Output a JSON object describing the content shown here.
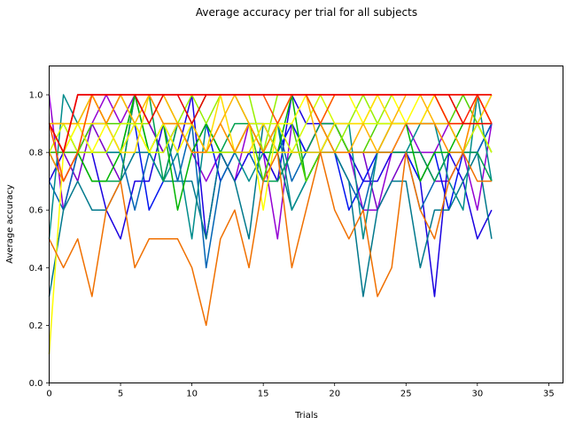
{
  "chart_data": {
    "type": "line",
    "title": "Average accuracy per trial for all subjects",
    "xlabel": "Trials",
    "ylabel": "Average accuracy",
    "xlim": [
      0,
      36
    ],
    "ylim": [
      0,
      1.1
    ],
    "xticks": [
      "0",
      "5",
      "10",
      "15",
      "20",
      "25",
      "30",
      "35"
    ],
    "yticks": [
      "0.0",
      "0.2",
      "0.4",
      "0.6",
      "0.8",
      "1.0"
    ],
    "xtick_values": [
      0,
      5,
      10,
      15,
      20,
      25,
      30,
      35
    ],
    "ytick_values": [
      0.0,
      0.2,
      0.4,
      0.6,
      0.8,
      1.0
    ],
    "grid": false,
    "legend": false,
    "series": [
      {
        "color": "#9400d3",
        "values": [
          1.0,
          0.6,
          0.8,
          0.9,
          1.0,
          0.9,
          1.0,
          0.9,
          0.8,
          0.9,
          0.8,
          0.7,
          0.8,
          0.7,
          0.9,
          0.8,
          0.5,
          0.9,
          0.8,
          0.9,
          0.8,
          0.8,
          0.6,
          0.6,
          0.8,
          0.9,
          0.8,
          0.8,
          0.9,
          0.8,
          0.6,
          0.9
        ]
      },
      {
        "color": "#7a00c8",
        "values": [
          0.8,
          0.8,
          0.7,
          0.9,
          0.8,
          0.7,
          1.0,
          0.9,
          0.8,
          0.9,
          0.8,
          0.8,
          0.8,
          0.8,
          0.8,
          0.8,
          0.7,
          0.8,
          0.8,
          0.9,
          0.9,
          0.8,
          0.8,
          0.6,
          0.7,
          0.8,
          0.8,
          0.7,
          0.7,
          0.8,
          0.9,
          1.0
        ]
      },
      {
        "color": "#1a00e0",
        "values": [
          0.7,
          0.8,
          0.8,
          0.8,
          0.6,
          0.5,
          0.7,
          0.7,
          0.9,
          0.8,
          1.0,
          0.5,
          0.8,
          0.7,
          0.8,
          0.8,
          0.7,
          1.0,
          0.9,
          0.9,
          0.9,
          0.8,
          0.7,
          0.7,
          0.8,
          0.8,
          0.7,
          0.3,
          0.8,
          0.7,
          0.5,
          0.6
        ]
      },
      {
        "color": "#0014f0",
        "values": [
          0.8,
          0.8,
          0.8,
          0.9,
          0.9,
          0.8,
          0.9,
          0.6,
          0.7,
          0.9,
          0.8,
          0.9,
          0.7,
          0.8,
          0.9,
          0.9,
          0.8,
          0.9,
          0.8,
          0.8,
          0.8,
          0.6,
          0.7,
          0.8,
          0.8,
          0.8,
          0.7,
          0.8,
          0.6,
          0.8,
          0.8,
          0.9
        ]
      },
      {
        "color": "#0064b4",
        "values": [
          0.7,
          0.6,
          0.8,
          0.8,
          0.8,
          0.8,
          0.6,
          0.8,
          0.9,
          0.7,
          0.9,
          0.4,
          0.7,
          0.8,
          0.8,
          0.7,
          0.9,
          0.7,
          0.8,
          0.8,
          0.8,
          0.7,
          0.6,
          0.8,
          0.8,
          0.8,
          0.6,
          0.7,
          0.8,
          0.8,
          0.8,
          0.9
        ]
      },
      {
        "color": "#00788c",
        "values": [
          0.3,
          0.6,
          0.7,
          0.6,
          0.6,
          0.7,
          0.8,
          0.8,
          0.7,
          0.7,
          0.7,
          0.5,
          0.8,
          0.7,
          0.5,
          0.9,
          0.8,
          0.6,
          0.7,
          0.8,
          0.8,
          0.7,
          0.3,
          0.6,
          0.7,
          0.7,
          0.4,
          0.6,
          0.6,
          0.7,
          0.8,
          0.5
        ]
      },
      {
        "color": "#008c8c",
        "values": [
          0.5,
          1.0,
          0.9,
          0.8,
          0.8,
          0.8,
          1.0,
          0.8,
          0.7,
          0.8,
          0.5,
          0.9,
          0.8,
          0.8,
          0.7,
          0.8,
          0.9,
          0.6,
          0.7,
          0.8,
          0.9,
          0.9,
          0.5,
          0.8,
          0.8,
          0.8,
          0.9,
          0.9,
          0.7,
          0.6,
          1.0,
          0.7
        ]
      },
      {
        "color": "#00a050",
        "values": [
          0.8,
          0.7,
          0.8,
          0.7,
          0.7,
          0.7,
          1.0,
          1.0,
          0.7,
          0.9,
          0.9,
          0.8,
          0.8,
          0.9,
          0.9,
          0.7,
          0.7,
          0.8,
          0.8,
          0.9,
          0.9,
          0.8,
          0.8,
          0.8,
          0.8,
          0.8,
          0.8,
          0.7,
          0.8,
          0.8,
          0.8,
          0.7
        ]
      },
      {
        "color": "#00b400",
        "values": [
          0.9,
          0.9,
          0.8,
          0.7,
          0.7,
          0.8,
          1.0,
          0.8,
          0.9,
          0.6,
          0.8,
          0.9,
          0.8,
          0.8,
          0.9,
          0.8,
          0.8,
          1.0,
          0.7,
          0.8,
          0.9,
          0.8,
          0.8,
          0.8,
          0.9,
          0.9,
          0.7,
          0.8,
          0.8,
          0.9,
          0.9,
          0.8
        ]
      },
      {
        "color": "#50d200",
        "values": [
          0.8,
          0.8,
          0.8,
          0.9,
          0.9,
          0.9,
          0.9,
          0.8,
          0.9,
          0.9,
          0.9,
          1.0,
          1.0,
          1.0,
          0.9,
          0.7,
          0.9,
          0.9,
          0.7,
          0.8,
          0.9,
          0.8,
          0.8,
          0.9,
          0.9,
          0.9,
          0.9,
          0.9,
          0.9,
          1.0,
          0.9,
          0.8
        ]
      },
      {
        "color": "#96f000",
        "values": [
          0.9,
          0.8,
          0.9,
          1.0,
          0.9,
          1.0,
          0.9,
          0.9,
          1.0,
          0.9,
          1.0,
          0.9,
          1.0,
          1.0,
          1.0,
          0.8,
          1.0,
          1.0,
          1.0,
          0.9,
          0.8,
          0.9,
          1.0,
          0.9,
          1.0,
          1.0,
          1.0,
          1.0,
          0.9,
          0.9,
          0.9,
          0.9
        ]
      },
      {
        "color": "#d2fa00",
        "values": [
          0.8,
          0.9,
          0.8,
          0.8,
          0.8,
          0.9,
          0.9,
          0.8,
          0.8,
          0.9,
          0.9,
          0.8,
          0.8,
          0.8,
          0.9,
          0.9,
          0.9,
          0.8,
          0.9,
          1.0,
          0.9,
          0.9,
          0.9,
          0.9,
          0.9,
          0.9,
          0.9,
          1.0,
          0.9,
          0.8,
          0.9,
          0.8
        ]
      },
      {
        "color": "#ffff00",
        "values": [
          0.1,
          0.8,
          0.9,
          0.8,
          0.9,
          0.8,
          0.9,
          0.8,
          0.9,
          0.8,
          0.9,
          0.8,
          0.9,
          0.8,
          0.9,
          0.6,
          0.9,
          0.9,
          1.0,
          0.9,
          1.0,
          1.0,
          0.9,
          1.0,
          1.0,
          0.9,
          1.0,
          1.0,
          0.9,
          0.9,
          0.9,
          0.9
        ]
      },
      {
        "color": "#ffdc00",
        "values": [
          0.9,
          0.9,
          0.9,
          0.9,
          0.9,
          0.8,
          0.8,
          1.0,
          0.9,
          0.9,
          0.8,
          0.8,
          1.0,
          0.8,
          0.8,
          0.9,
          0.8,
          0.8,
          0.8,
          0.8,
          0.9,
          0.9,
          0.9,
          1.0,
          0.9,
          0.9,
          0.9,
          1.0,
          1.0,
          0.9,
          0.9,
          1.0
        ]
      },
      {
        "color": "#ffb400",
        "values": [
          0.9,
          0.9,
          0.9,
          1.0,
          0.9,
          1.0,
          0.9,
          1.0,
          1.0,
          0.9,
          0.9,
          0.8,
          0.9,
          1.0,
          0.9,
          0.8,
          0.9,
          1.0,
          1.0,
          0.8,
          0.8,
          0.8,
          0.9,
          0.8,
          0.9,
          1.0,
          1.0,
          0.9,
          0.9,
          0.8,
          1.0,
          0.9
        ]
      },
      {
        "color": "#ff8c00",
        "values": [
          0.8,
          0.7,
          0.8,
          1.0,
          0.9,
          1.0,
          1.0,
          1.0,
          0.9,
          0.9,
          0.8,
          0.8,
          0.9,
          0.8,
          0.9,
          0.8,
          0.9,
          1.0,
          1.0,
          0.9,
          0.8,
          0.8,
          0.8,
          0.8,
          0.8,
          0.9,
          0.9,
          0.9,
          0.8,
          0.8,
          1.0,
          0.9
        ]
      },
      {
        "color": "#f07000",
        "values": [
          0.5,
          0.4,
          0.5,
          0.3,
          0.6,
          0.7,
          0.4,
          0.5,
          0.5,
          0.5,
          0.4,
          0.2,
          0.5,
          0.6,
          0.4,
          0.7,
          0.8,
          0.4,
          0.6,
          0.8,
          0.6,
          0.5,
          0.6,
          0.3,
          0.4,
          0.8,
          0.6,
          0.5,
          0.7,
          0.8,
          0.7,
          0.7
        ]
      },
      {
        "color": "#ff5000",
        "values": [
          0.9,
          0.7,
          0.8,
          1.0,
          1.0,
          1.0,
          1.0,
          1.0,
          1.0,
          1.0,
          1.0,
          1.0,
          1.0,
          1.0,
          1.0,
          1.0,
          0.9,
          1.0,
          1.0,
          0.9,
          1.0,
          1.0,
          1.0,
          1.0,
          1.0,
          1.0,
          1.0,
          1.0,
          1.0,
          1.0,
          1.0,
          1.0
        ]
      },
      {
        "color": "#ff2000",
        "values": [
          0.9,
          0.8,
          1.0,
          1.0,
          1.0,
          1.0,
          1.0,
          1.0,
          1.0,
          1.0,
          1.0,
          1.0,
          1.0,
          1.0,
          1.0,
          1.0,
          1.0,
          1.0,
          1.0,
          1.0,
          1.0,
          1.0,
          1.0,
          1.0,
          1.0,
          1.0,
          1.0,
          1.0,
          0.9,
          0.9,
          1.0,
          0.9
        ]
      },
      {
        "color": "#e80000",
        "values": [
          0.9,
          0.8,
          1.0,
          1.0,
          1.0,
          1.0,
          1.0,
          0.9,
          1.0,
          1.0,
          0.9,
          1.0,
          1.0,
          1.0,
          1.0,
          1.0,
          1.0,
          1.0,
          1.0,
          1.0,
          1.0,
          1.0,
          1.0,
          1.0,
          1.0,
          1.0,
          1.0,
          1.0,
          1.0,
          0.9,
          0.9,
          0.9
        ]
      },
      {
        "color": "#ee0000",
        "values": [
          0.9,
          0.8,
          1.0,
          1.0,
          1.0,
          1.0,
          1.0,
          1.0,
          1.0,
          1.0,
          1.0,
          1.0,
          1.0,
          1.0,
          1.0,
          1.0,
          1.0,
          1.0,
          1.0,
          1.0,
          1.0,
          1.0,
          1.0,
          1.0,
          1.0,
          1.0,
          1.0,
          1.0,
          1.0,
          1.0,
          1.0,
          1.0
        ]
      }
    ]
  }
}
